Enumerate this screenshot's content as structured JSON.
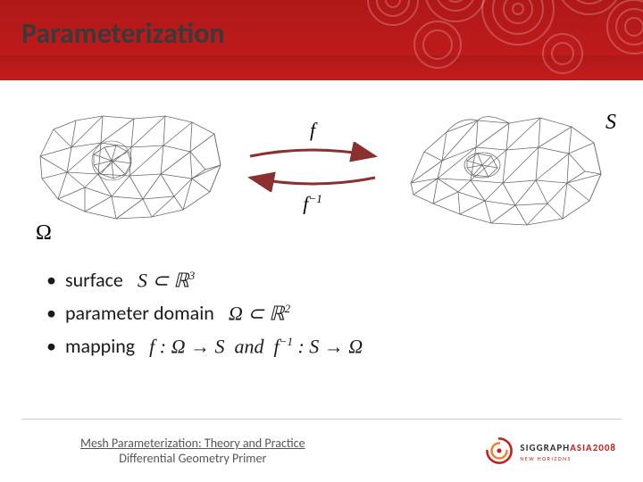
{
  "header": {
    "title": "Parameterization",
    "band_gradient": [
      "#b01818",
      "#c51c1c"
    ],
    "circle_color": "rgba(255,255,255,0.25)"
  },
  "diagram": {
    "left_label": "Ω",
    "right_label": "S",
    "forward_map": "f",
    "inverse_map": "f⁻¹",
    "arrow_color": "#8b2f2f",
    "mesh_stroke": "#6a6a6a",
    "mesh_stroke_width": 0.8
  },
  "bullets": [
    {
      "label": "surface",
      "math_html": "<i>S</i> ⊂ ℝ<sup class='sup'>3</sup>"
    },
    {
      "label": "parameter domain",
      "math_html": "Ω ⊂ ℝ<sup class='sup'>2</sup>"
    },
    {
      "label": "mapping",
      "math_html": "<i>f</i> : Ω → <i>S</i>&nbsp;&nbsp;and&nbsp;&nbsp;<i>f</i><sup class='sup'>−1</sup> : <i>S</i> → Ω"
    }
  ],
  "footer": {
    "line1": "Mesh Parameterization: Theory and Practice",
    "line2": "Differential Geometry Primer",
    "logo_main": "SIGGRAPH",
    "logo_year": "ASIA2008",
    "logo_sub": "NEW HORIZONS",
    "logo_accent": "#c51c1c"
  }
}
